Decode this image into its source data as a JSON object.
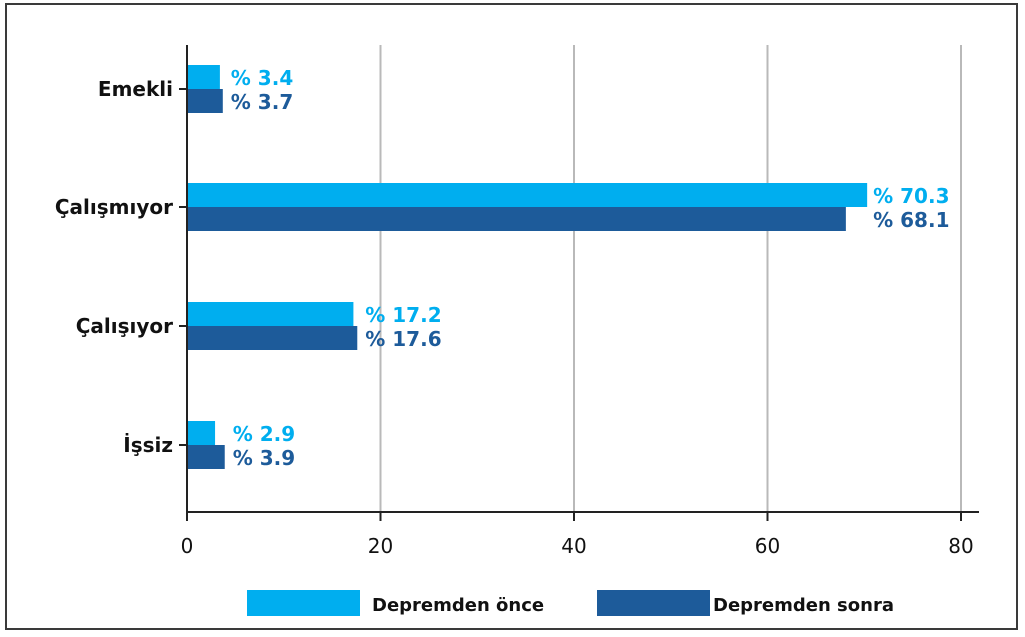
{
  "chart_data": {
    "type": "bar",
    "orientation": "horizontal",
    "categories": [
      "Emekli",
      "Çalışmıyor",
      "Çalışıyor",
      "İşsiz"
    ],
    "series": [
      {
        "name": "Depremden önce",
        "color": "#00aeef",
        "values": [
          3.4,
          70.3,
          17.2,
          2.9
        ],
        "labels": [
          "% 3.4",
          "% 70.3",
          "% 17.2",
          "% 2.9"
        ]
      },
      {
        "name": "Depremden sonra",
        "color": "#1d5b9a",
        "values": [
          3.7,
          68.1,
          17.6,
          3.9
        ],
        "labels": [
          "% 3.7",
          "% 68.1",
          "% 17.6",
          "% 3.9"
        ]
      }
    ],
    "xlim": [
      0,
      80
    ],
    "xticks": [
      0,
      20,
      40,
      60,
      80
    ],
    "grid": true,
    "legend_position": "bottom"
  }
}
